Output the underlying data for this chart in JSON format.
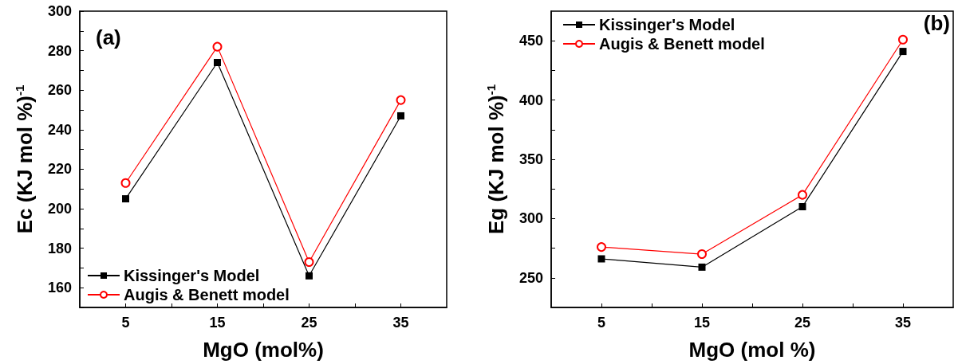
{
  "chart_data": [
    {
      "type": "line",
      "xlabel": "MgO (mol%)",
      "ylabel": "Ec (KJ mol %)$^{-1}$",
      "annotations": [
        "(a)"
      ],
      "x": [
        5,
        15,
        25,
        35
      ],
      "xlim": [
        0,
        40
      ],
      "xticks": [
        5,
        {
          "value": 10,
          "label": null
        },
        15,
        {
          "value": 20,
          "label": null
        },
        25,
        {
          "value": 30,
          "label": null
        },
        35
      ],
      "ylim": [
        150,
        300
      ],
      "yticks": [
        {
          "value": 150,
          "label": null
        },
        160,
        {
          "value": 170,
          "label": null
        },
        180,
        {
          "value": 190,
          "label": null
        },
        200,
        {
          "value": 210,
          "label": null
        },
        220,
        {
          "value": 230,
          "label": null
        },
        240,
        {
          "value": 250,
          "label": null
        },
        260,
        {
          "value": 270,
          "label": null
        },
        280,
        {
          "value": 290,
          "label": null
        },
        300
      ],
      "legend": "bottom left",
      "line_style": "solid",
      "series": [
        {
          "name": "Kissinger's Model",
          "color": "#000000",
          "marker": "square",
          "values": [
            205,
            274,
            166,
            247
          ]
        },
        {
          "name": "Augis & Benett model",
          "color": "#ff0000",
          "marker": "circle",
          "values": [
            213,
            282,
            173,
            255
          ]
        }
      ]
    },
    {
      "type": "line",
      "xlabel": "MgO (mol %)",
      "ylabel": "Eg (KJ mol %)$^{-1}$",
      "annotations": [
        "(b)"
      ],
      "x": [
        5,
        15,
        25,
        35
      ],
      "xlim": [
        0,
        40
      ],
      "xticks": [
        5,
        {
          "value": 10,
          "label": null
        },
        15,
        {
          "value": 20,
          "label": null
        },
        25,
        {
          "value": 30,
          "label": null
        },
        35
      ],
      "ylim": [
        225,
        475
      ],
      "yticks": [
        250,
        {
          "value": 275,
          "label": null
        },
        300,
        {
          "value": 325,
          "label": null
        },
        350,
        {
          "value": 375,
          "label": null
        },
        400,
        {
          "value": 425,
          "label": null
        },
        450
      ],
      "legend": "top left",
      "line_style": "solid",
      "series": [
        {
          "name": "Kissinger's Model",
          "color": "#000000",
          "marker": "square",
          "values": [
            266,
            259,
            310,
            441
          ]
        },
        {
          "name": "Augis & Benett model",
          "color": "#ff0000",
          "marker": "circle",
          "values": [
            276,
            270,
            320,
            451
          ]
        }
      ]
    }
  ]
}
